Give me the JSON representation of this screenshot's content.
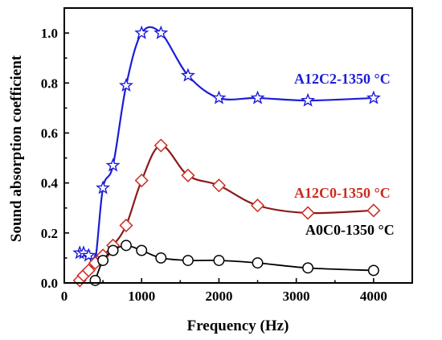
{
  "chart_data": {
    "type": "line",
    "title": "",
    "xlabel": "Frequency (Hz)",
    "ylabel": "Sound absorption coefficient",
    "xlim": [
      0,
      4500
    ],
    "ylim": [
      0,
      1.1
    ],
    "x_ticks": [
      0,
      1000,
      2000,
      3000,
      4000
    ],
    "x_tick_labels": [
      "0",
      "1000",
      "2000",
      "3000",
      "4000"
    ],
    "y_ticks": [
      0.0,
      0.2,
      0.4,
      0.6,
      0.8,
      1.0
    ],
    "y_tick_labels": [
      "0.0",
      "0.2",
      "0.4",
      "0.6",
      "0.8",
      "1.0"
    ],
    "grid": false,
    "legend": "none (series labeled inline)",
    "series": [
      {
        "name": "A12C2-1350 °C",
        "color": "#1c1cd8",
        "marker": "star",
        "x": [
          200,
          250,
          315,
          400,
          500,
          630,
          800,
          1000,
          1250,
          1600,
          2000,
          2500,
          3150,
          4000
        ],
        "y": [
          0.12,
          0.12,
          0.11,
          0.09,
          0.38,
          0.47,
          0.79,
          1.0,
          1.0,
          0.83,
          0.74,
          0.74,
          0.73,
          0.74
        ]
      },
      {
        "name": "A12C0-1350 °C",
        "color": "#cc2a1e",
        "line_color": "#8b1a1a",
        "marker": "diamond",
        "x": [
          200,
          250,
          315,
          400,
          500,
          630,
          800,
          1000,
          1250,
          1600,
          2000,
          2500,
          3150,
          4000
        ],
        "y": [
          0.01,
          0.03,
          0.05,
          0.08,
          0.11,
          0.15,
          0.23,
          0.41,
          0.55,
          0.43,
          0.39,
          0.31,
          0.28,
          0.29
        ]
      },
      {
        "name": "A0C0-1350 °C",
        "color": "#000000",
        "marker": "circle",
        "x": [
          400,
          500,
          630,
          800,
          1000,
          1250,
          1600,
          2000,
          2500,
          3150,
          4000
        ],
        "y": [
          0.01,
          0.09,
          0.13,
          0.15,
          0.13,
          0.1,
          0.09,
          0.09,
          0.08,
          0.06,
          0.05
        ]
      }
    ]
  }
}
